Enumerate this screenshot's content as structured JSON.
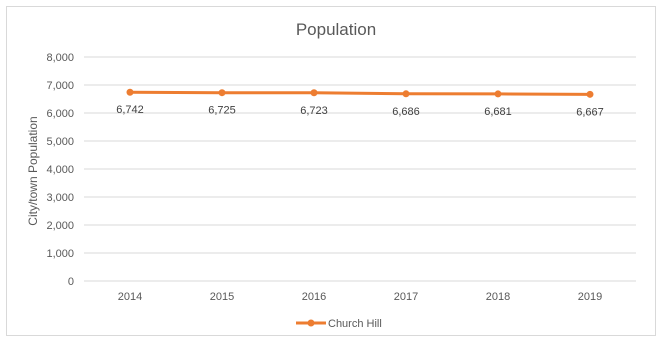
{
  "chart_data": {
    "type": "line",
    "title": "Population",
    "xlabel": "",
    "ylabel": "City/town Population",
    "categories": [
      "2014",
      "2015",
      "2016",
      "2017",
      "2018",
      "2019"
    ],
    "series": [
      {
        "name": "Church Hill",
        "values": [
          6742,
          6725,
          6723,
          6686,
          6681,
          6667
        ],
        "labels": [
          "6,742",
          "6,725",
          "6,723",
          "6,686",
          "6,681",
          "6,667"
        ],
        "color": "#ED7D31"
      }
    ],
    "ylim": [
      0,
      8000
    ],
    "yticks": [
      0,
      1000,
      2000,
      3000,
      4000,
      5000,
      6000,
      7000,
      8000
    ],
    "ytick_labels": [
      "0",
      "1,000",
      "2,000",
      "3,000",
      "4,000",
      "5,000",
      "6,000",
      "7,000",
      "8,000"
    ],
    "grid": true,
    "legend_position": "bottom"
  }
}
